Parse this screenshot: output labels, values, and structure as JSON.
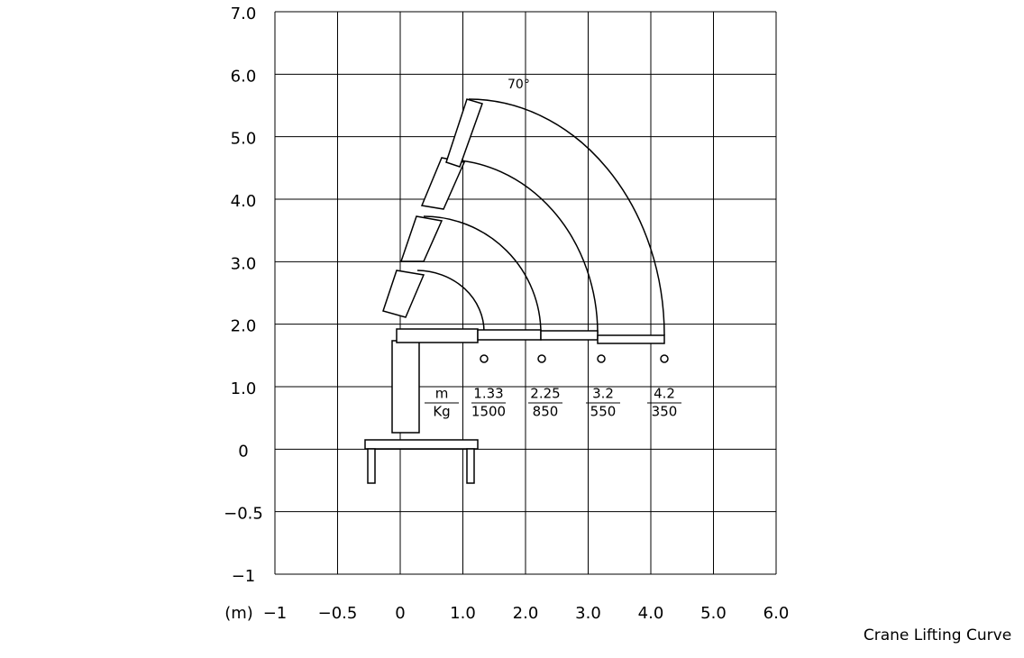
{
  "unit": "(m)",
  "caption": "Crane Lifting Curve",
  "angle_label": "70°",
  "y_axis_labels": [
    "7.0",
    "6.0",
    "5.0",
    "4.0",
    "3.0",
    "2.0",
    "1.0",
    "0",
    "−0.5",
    "−1"
  ],
  "x_axis_labels": [
    "−1",
    "−0.5",
    "0",
    "1.0",
    "2.0",
    "3.0",
    "4.0",
    "5.0",
    "6.0"
  ],
  "load_table": {
    "header": {
      "top": "m",
      "bottom": "Kg"
    },
    "columns": [
      {
        "radius": "1.33",
        "load": "1500"
      },
      {
        "radius": "2.25",
        "load": "850"
      },
      {
        "radius": "3.2",
        "load": "550"
      },
      {
        "radius": "4.2",
        "load": "350"
      }
    ]
  }
}
